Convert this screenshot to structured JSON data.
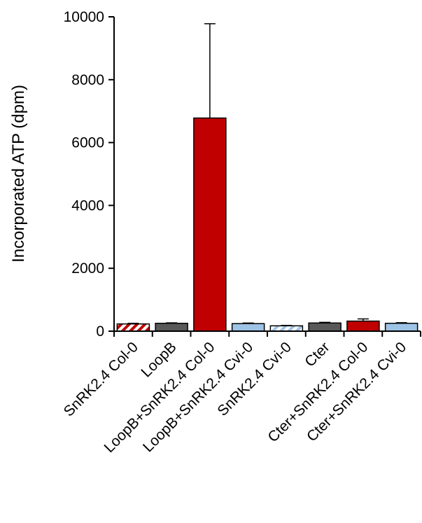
{
  "chart_data": {
    "type": "bar",
    "title": "",
    "xlabel": "",
    "ylabel": "Incorporated ATP (dpm)",
    "ylim": [
      0,
      10000
    ],
    "yticks": [
      0,
      2000,
      4000,
      6000,
      8000,
      10000
    ],
    "ytick_labels": [
      "0",
      "2000",
      "4000",
      "6000",
      "8000",
      "10000"
    ],
    "categories": [
      "SnRK2.4 Col-0",
      "LoopB",
      "LoopB+SnRK2.4 Col-0",
      "LoopB+SnRK2.4 Cvi-0",
      "SnRK2.4 Cvi-0",
      "Cter",
      "Cter+SnRK2.4 Col-0",
      "Cter+SnRK2.4 Cvi-0"
    ],
    "values": [
      230,
      250,
      6780,
      240,
      170,
      260,
      320,
      250
    ],
    "errors": [
      20,
      15,
      3000,
      20,
      15,
      20,
      70,
      20
    ],
    "bar_fills": [
      "hatch-red",
      "solid-gray",
      "solid-red",
      "solid-lightblue",
      "hatch-lightblue",
      "solid-gray",
      "solid-red",
      "solid-lightblue"
    ],
    "colors": {
      "red": "#c00000",
      "gray": "#595959",
      "lightblue": "#9dc3e6",
      "axis": "#000000"
    },
    "grid": false,
    "legend": "none"
  }
}
